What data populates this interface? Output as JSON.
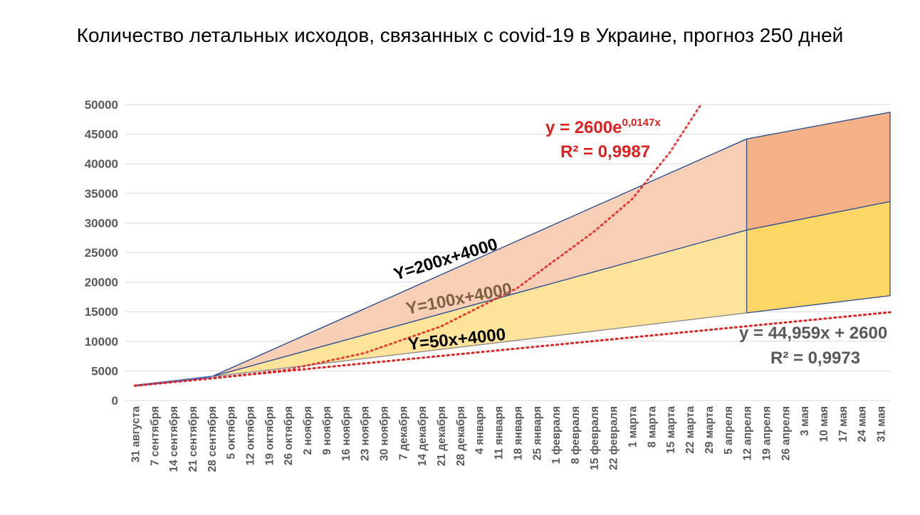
{
  "chart_data": {
    "type": "area",
    "title": "Количество летальных исходов, связанных с covid-19 в Украине, прогноз 250 дней",
    "xlabel": "",
    "ylabel": "",
    "ylim": [
      0,
      50000
    ],
    "yticks": [
      0,
      5000,
      10000,
      15000,
      20000,
      25000,
      30000,
      35000,
      40000,
      45000,
      50000
    ],
    "categories": [
      "31 августа",
      "7 сентября",
      "14 сентября",
      "21 сентября",
      "28 сентября",
      "5 октября",
      "12 октября",
      "19 октября",
      "26 октября",
      "2 ноября",
      "9 ноября",
      "16 ноября",
      "23 ноября",
      "30 ноября",
      "7 декабря",
      "14 декабря",
      "21 декабря",
      "28 декабря",
      "4 января",
      "11 января",
      "18 января",
      "25 января",
      "1 февраля",
      "8 февраля",
      "15 февраля",
      "22 февраля",
      "1 марта",
      "8 марта",
      "15 марта",
      "22 марта",
      "29 марта",
      "5 апреля",
      "12 апреля",
      "19 апреля",
      "26 апреля",
      "3 мая",
      "10 мая",
      "17 мая",
      "24 мая",
      "31 мая"
    ],
    "grid": true,
    "series": [
      {
        "label": "Y=200x+4000",
        "color": "#000000",
        "points": [
          [
            0,
            2500
          ],
          [
            3,
            3600
          ],
          [
            4,
            4000
          ],
          [
            32,
            44200
          ]
        ],
        "extension": [
          [
            32,
            44200
          ],
          [
            39.5,
            48700
          ]
        ]
      },
      {
        "label": "Y=100x+4000",
        "color": "#7f6040",
        "points": [
          [
            0,
            2500
          ],
          [
            3,
            3600
          ],
          [
            4,
            4000
          ],
          [
            32,
            28800
          ]
        ],
        "extension": [
          [
            32,
            28800
          ],
          [
            39.5,
            33600
          ]
        ]
      },
      {
        "label": "Y=50x+4000",
        "color": "#000000",
        "points": [
          [
            0,
            2500
          ],
          [
            3,
            3600
          ],
          [
            4,
            4000
          ],
          [
            32,
            14800
          ]
        ],
        "extension": [
          [
            32,
            14800
          ],
          [
            39.5,
            17700
          ]
        ]
      }
    ],
    "trendlines": [
      {
        "name": "exponential",
        "color": "#e02020",
        "equation": "y = 2600e",
        "exponent": "0,0147x",
        "r2": "R² = 0,9987",
        "points": [
          [
            0,
            2500
          ],
          [
            4,
            3700
          ],
          [
            8,
            5200
          ],
          [
            12,
            8000
          ],
          [
            16,
            12500
          ],
          [
            20,
            19000
          ],
          [
            24,
            28500
          ],
          [
            26,
            34000
          ],
          [
            28,
            42000
          ],
          [
            29.6,
            50000
          ]
        ]
      },
      {
        "name": "linear",
        "color": "#e02020",
        "equation": "y = 44,959x + 2600",
        "r2": "R² = 0,9973",
        "points": [
          [
            0,
            2500
          ],
          [
            39.5,
            14900
          ]
        ]
      }
    ],
    "fills": {
      "upper": "#f7cfb4",
      "lower": "#fde49a",
      "upper_box": "#f3b185",
      "lower_box": "#fcd766"
    }
  }
}
